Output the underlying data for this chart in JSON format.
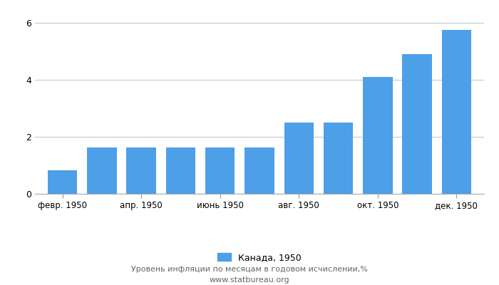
{
  "values": [
    0.82,
    1.63,
    1.63,
    1.63,
    1.63,
    1.63,
    2.5,
    2.5,
    4.1,
    4.9,
    5.74
  ],
  "xtick_labels": [
    "февр. 1950",
    "апр. 1950",
    "июнь 1950",
    "авг. 1950",
    "окт. 1950",
    "дек. 1950"
  ],
  "xtick_positions": [
    0,
    2,
    4,
    6,
    8,
    10
  ],
  "bar_color": "#4d9fe8",
  "background_color": "#ffffff",
  "grid_color": "#c8c8c8",
  "ylim": [
    0,
    6.4
  ],
  "yticks": [
    0,
    2,
    4,
    6
  ],
  "legend_label": "Канада, 1950",
  "subtitle": "Уровень инфляции по месяцам в годовом исчислении,%",
  "website": "www.statbureau.org"
}
